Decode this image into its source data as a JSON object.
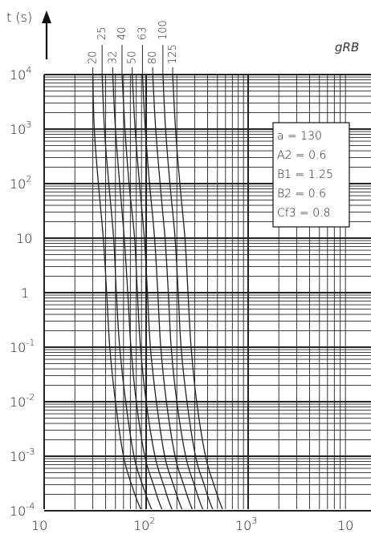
{
  "chart_data": {
    "type": "line",
    "title": "gRB",
    "ylabel": "t (s)",
    "xlabel": "",
    "x_scale": "log",
    "y_scale": "log",
    "xlim": [
      10,
      10000
    ],
    "ylim": [
      0.0001,
      10000
    ],
    "grid": true,
    "x_ticks": [
      {
        "base": "10",
        "exp": ""
      },
      {
        "base": "10",
        "exp": "2"
      },
      {
        "base": "10",
        "exp": "3"
      },
      {
        "base": "10",
        "exp": ""
      }
    ],
    "y_ticks": [
      {
        "base": "10",
        "exp": "4"
      },
      {
        "base": "10",
        "exp": "3"
      },
      {
        "base": "10",
        "exp": "2"
      },
      {
        "base": "10",
        "exp": ""
      },
      {
        "base": "1",
        "exp": ""
      },
      {
        "base": "10",
        "exp": "-1"
      },
      {
        "base": "10",
        "exp": "-2"
      },
      {
        "base": "10",
        "exp": "-3"
      },
      {
        "base": "10",
        "exp": "-4"
      }
    ],
    "parameters": [
      "a = 130",
      "A2 = 0.6",
      "B1 = 1.25",
      "B2 = 0.6",
      "Cf3 = 0.8"
    ],
    "series": [
      {
        "name": "20",
        "x": [
          30,
          31,
          34,
          38,
          41,
          44,
          50,
          60,
          72,
          90,
          130
        ],
        "y": [
          10000,
          1000,
          100,
          10,
          1,
          0.1,
          0.01,
          0.001,
          0.0003,
          0.0001,
          3e-05
        ]
      },
      {
        "name": "25",
        "x": [
          37,
          39,
          43,
          48,
          51,
          55,
          63,
          76,
          92,
          115,
          165
        ],
        "y": [
          10000,
          1000,
          100,
          10,
          1,
          0.1,
          0.01,
          0.001,
          0.0003,
          0.0001,
          3e-05
        ]
      },
      {
        "name": "32",
        "x": [
          47,
          50,
          55,
          61,
          66,
          71,
          80,
          97,
          118,
          145,
          210
        ],
        "y": [
          10000,
          1000,
          100,
          10,
          1,
          0.1,
          0.01,
          0.001,
          0.0003,
          0.0001,
          3e-05
        ]
      },
      {
        "name": "40",
        "x": [
          58,
          62,
          68,
          77,
          82,
          88,
          100,
          122,
          148,
          182,
          262
        ],
        "y": [
          10000,
          1000,
          100,
          10,
          1,
          0.1,
          0.01,
          0.001,
          0.0003,
          0.0001,
          3e-05
        ]
      },
      {
        "name": "50",
        "x": [
          73,
          78,
          86,
          96,
          103,
          110,
          126,
          152,
          185,
          228,
          330
        ],
        "y": [
          10000,
          1000,
          100,
          10,
          1,
          0.1,
          0.01,
          0.001,
          0.0003,
          0.0001,
          3e-05
        ]
      },
      {
        "name": "63",
        "x": [
          92,
          98,
          108,
          121,
          130,
          139,
          158,
          192,
          233,
          288,
          415
        ],
        "y": [
          10000,
          1000,
          100,
          10,
          1,
          0.1,
          0.01,
          0.001,
          0.0003,
          0.0001,
          3e-05
        ]
      },
      {
        "name": "80",
        "x": [
          116,
          124,
          137,
          153,
          165,
          176,
          200,
          244,
          296,
          365,
          527
        ],
        "y": [
          10000,
          1000,
          100,
          10,
          1,
          0.1,
          0.01,
          0.001,
          0.0003,
          0.0001,
          3e-05
        ]
      },
      {
        "name": "100",
        "x": [
          146,
          155,
          171,
          192,
          206,
          220,
          251,
          305,
          370,
          456,
          658
        ],
        "y": [
          10000,
          1000,
          100,
          10,
          1,
          0.1,
          0.01,
          0.001,
          0.0003,
          0.0001,
          3e-05
        ]
      },
      {
        "name": "125",
        "x": [
          182,
          194,
          214,
          240,
          257,
          276,
          313,
          382,
          462,
          570,
          822
        ],
        "y": [
          10000,
          1000,
          100,
          10,
          1,
          0.1,
          0.01,
          0.001,
          0.0003,
          0.0001,
          3e-05
        ]
      }
    ]
  },
  "colors": {
    "line": "#222222",
    "grid": "#222222",
    "background": "#ffffff"
  }
}
